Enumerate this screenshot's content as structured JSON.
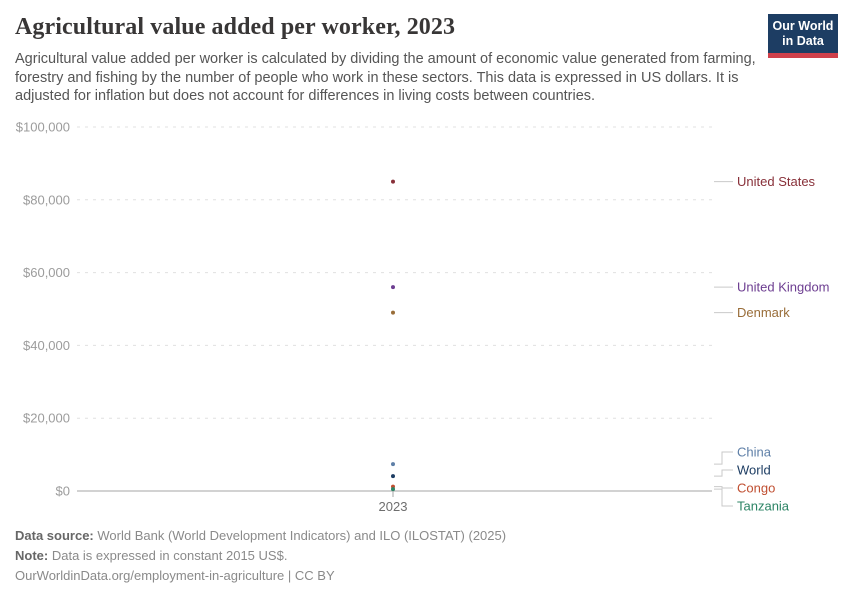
{
  "header": {
    "title": "Agricultural value added per worker, 2023",
    "subtitle": "Agricultural value added per worker is calculated by dividing the amount of economic value generated from farming, forestry and fishing by the number of people who work in these sectors. This data is expressed in US dollars. It is adjusted for inflation but does not account for differences in living costs between countries.",
    "logo": {
      "line1": "Our World",
      "line2": "in Data",
      "bg_color": "#1d3d63",
      "stripe_color": "#d0404b"
    }
  },
  "chart_data": {
    "type": "scatter",
    "x": [
      2023
    ],
    "x_tick_label": "2023",
    "series": [
      {
        "name": "United States",
        "value": 85000,
        "color": "#883039"
      },
      {
        "name": "United Kingdom",
        "value": 56000,
        "color": "#6D3E91"
      },
      {
        "name": "Denmark",
        "value": 49000,
        "color": "#996D39"
      },
      {
        "name": "China",
        "value": 7400,
        "color": "#5E7FA7"
      },
      {
        "name": "World",
        "value": 4100,
        "color": "#1D3D63"
      },
      {
        "name": "Congo",
        "value": 1200,
        "color": "#C04F31"
      },
      {
        "name": "Tanzania",
        "value": 500,
        "color": "#2C8465"
      }
    ],
    "y_axis": {
      "ylim": [
        0,
        100000
      ],
      "ticks": [
        {
          "value": 0,
          "label": "$0"
        },
        {
          "value": 20000,
          "label": "$20,000"
        },
        {
          "value": 40000,
          "label": "$40,000"
        },
        {
          "value": 60000,
          "label": "$60,000"
        },
        {
          "value": 80000,
          "label": "$80,000"
        },
        {
          "value": 100000,
          "label": "$100,000"
        }
      ]
    },
    "grid": "horizontal-dashed",
    "legend_position": "right-entity-labels"
  },
  "footer": {
    "data_source_label": "Data source:",
    "data_source": "World Bank (World Development Indicators) and ILO (ILOSTAT) (2025)",
    "note_label": "Note:",
    "note": "Data is expressed in constant 2015 US$.",
    "link": "OurWorldinData.org/employment-in-agriculture",
    "divider": "|",
    "license": "CC BY"
  }
}
